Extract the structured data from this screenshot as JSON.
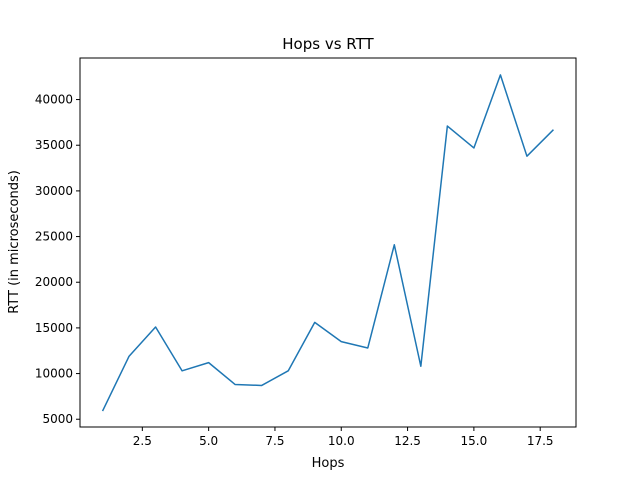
{
  "chart_data": {
    "type": "line",
    "title": "Hops vs RTT",
    "xlabel": "Hops",
    "ylabel": "RTT (in microseconds)",
    "xlim": [
      0.15,
      18.85
    ],
    "ylim": [
      4150,
      44550
    ],
    "xticks": [
      2.5,
      5.0,
      7.5,
      10.0,
      12.5,
      15.0,
      17.5
    ],
    "xtick_labels": [
      "2.5",
      "5.0",
      "7.5",
      "10.0",
      "12.5",
      "15.0",
      "17.5"
    ],
    "yticks": [
      5000,
      10000,
      15000,
      20000,
      25000,
      30000,
      35000,
      40000
    ],
    "ytick_labels": [
      "5000",
      "10000",
      "15000",
      "20000",
      "25000",
      "30000",
      "35000",
      "40000"
    ],
    "grid": false,
    "series": [
      {
        "color": "#1f77b4",
        "x": [
          1,
          2,
          3,
          4,
          5,
          6,
          7,
          8,
          9,
          10,
          11,
          12,
          13,
          14,
          15,
          16,
          17,
          18
        ],
        "y": [
          5900,
          11900,
          15100,
          10300,
          11200,
          8800,
          8700,
          10300,
          15600,
          13500,
          12800,
          24100,
          10800,
          37100,
          34700,
          42700,
          33800,
          36700
        ]
      }
    ]
  }
}
